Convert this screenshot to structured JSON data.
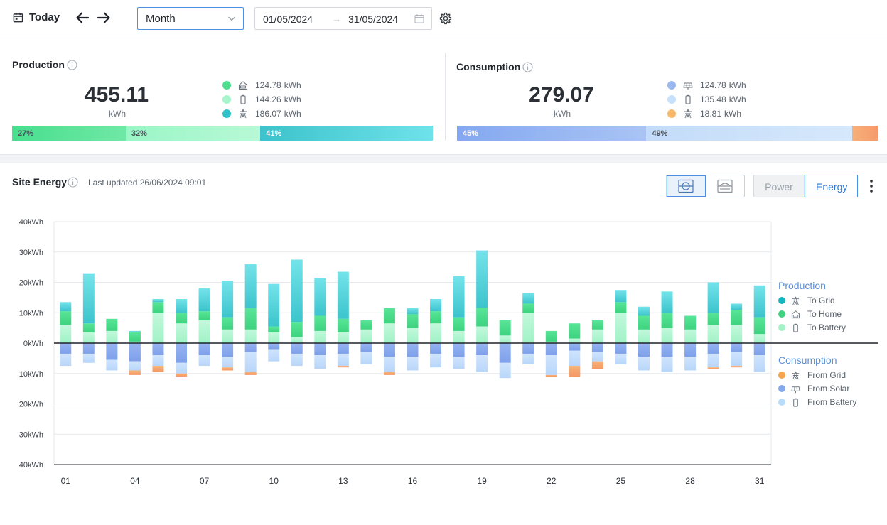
{
  "toolbar": {
    "today_label": "Today",
    "period": "Month",
    "date_from": "01/05/2024",
    "date_arrow": "→",
    "date_to": "31/05/2024"
  },
  "production": {
    "title": "Production",
    "total": "455.11",
    "unit": "kWh",
    "breakdown": [
      {
        "icon": "home-icon",
        "value": "124.78",
        "unit": "kWh",
        "color": "#4fdc8c"
      },
      {
        "icon": "battery-icon",
        "value": "144.26",
        "unit": "kWh",
        "color": "#a8f5cc"
      },
      {
        "icon": "pylon-icon",
        "value": "186.07",
        "unit": "kWh",
        "color": "#2fc2c8"
      }
    ],
    "bar": [
      {
        "label": "27%",
        "pct": 27,
        "color_from": "#48df8e",
        "color_to": "#6fe8a6"
      },
      {
        "label": "32%",
        "pct": 32,
        "color_from": "#9af6c6",
        "color_to": "#b8f8d6"
      },
      {
        "label": "41%",
        "pct": 41,
        "color_from": "#3cc3cb",
        "color_to": "#6fe2ea"
      }
    ]
  },
  "consumption": {
    "title": "Consumption",
    "total": "279.07",
    "unit": "kWh",
    "breakdown": [
      {
        "icon": "solar-panel-icon",
        "value": "124.78",
        "unit": "kWh",
        "color": "#9ab7ef"
      },
      {
        "icon": "battery-icon",
        "value": "135.48",
        "unit": "kWh",
        "color": "#c6e1fb"
      },
      {
        "icon": "pylon-icon",
        "value": "18.81",
        "unit": "kWh",
        "color": "#f8b86a"
      }
    ],
    "bar": [
      {
        "label": "45%",
        "pct": 45,
        "color_from": "#84a8f0",
        "color_to": "#a9c4f4"
      },
      {
        "label": "49%",
        "pct": 49,
        "color_from": "#c3dbfa",
        "color_to": "#d6e8fb"
      },
      {
        "label": "",
        "pct": 6,
        "color_from": "#f7b07a",
        "color_to": "#f59a6c"
      }
    ]
  },
  "site": {
    "title": "Site Energy",
    "updated": "Last updated 26/06/2024 09:01",
    "mode_power": "Power",
    "mode_energy": "Energy"
  },
  "legend": {
    "production_title": "Production",
    "production": [
      {
        "label": "To Grid",
        "color": "#13b8bf",
        "icon": "pylon-icon"
      },
      {
        "label": "To Home",
        "color": "#3ed17f",
        "icon": "home-icon"
      },
      {
        "label": "To Battery",
        "color": "#a4f3c8",
        "icon": "battery-icon"
      }
    ],
    "consumption_title": "Consumption",
    "consumption": [
      {
        "label": "From Grid",
        "color": "#f6a54a",
        "icon": "pylon-icon"
      },
      {
        "label": "From Solar",
        "color": "#86a8ec",
        "icon": "solar-panel-icon"
      },
      {
        "label": "From Battery",
        "color": "#b9dcfb",
        "icon": "battery-icon"
      }
    ]
  },
  "chart_data": {
    "type": "bar",
    "stacked": true,
    "y_tick_labels": [
      "40kWh",
      "30kWh",
      "20kWh",
      "10kWh",
      "0kWh",
      "10kWh",
      "20kWh",
      "30kWh",
      "40kWh"
    ],
    "ylim": [
      -40,
      40
    ],
    "grid": true,
    "legend_position": "right",
    "x": [
      "01",
      "02",
      "03",
      "04",
      "05",
      "06",
      "07",
      "08",
      "09",
      "10",
      "11",
      "12",
      "13",
      "14",
      "15",
      "16",
      "17",
      "18",
      "19",
      "20",
      "21",
      "22",
      "23",
      "24",
      "25",
      "26",
      "27",
      "28",
      "29",
      "30",
      "31"
    ],
    "x_tick_labels": [
      "01",
      "04",
      "07",
      "10",
      "13",
      "16",
      "19",
      "22",
      "25",
      "28",
      "31"
    ],
    "series": [
      {
        "name": "To Battery",
        "values": [
          6,
          3.5,
          4,
          0.5,
          10,
          6.5,
          7.5,
          4.5,
          4.5,
          3.5,
          2,
          4,
          3.5,
          4.5,
          6.5,
          5,
          6.5,
          4,
          5.5,
          2.5,
          10,
          0.5,
          1.5,
          4.5,
          10,
          4.5,
          5,
          4.5,
          6,
          6,
          3
        ]
      },
      {
        "name": "To Home",
        "values": [
          4.5,
          3,
          4,
          3,
          3.5,
          3.5,
          3,
          4,
          7,
          2,
          5,
          5,
          4.5,
          3,
          5,
          4.5,
          4,
          4.5,
          6,
          5,
          3,
          3.5,
          5,
          3,
          3.5,
          4.5,
          5,
          4.5,
          4,
          5,
          5.5
        ]
      },
      {
        "name": "To Grid",
        "values": [
          3,
          16.5,
          0,
          0.5,
          1,
          4.5,
          7.5,
          12,
          14.5,
          14,
          20.5,
          12.5,
          15.5,
          0,
          0,
          2,
          4,
          13.5,
          19,
          0,
          3.5,
          0,
          0,
          0,
          4,
          3,
          7,
          0,
          10,
          2,
          10.5
        ]
      },
      {
        "name": "From Solar",
        "values": [
          -3.5,
          -3.5,
          -5.5,
          -6,
          -4,
          -6.5,
          -4,
          -4.5,
          -3,
          -2,
          -3.5,
          -4,
          -3.5,
          -3,
          -4.5,
          -4.5,
          -3.5,
          -4.5,
          -4,
          -6.5,
          -3.5,
          -4,
          -2.5,
          -3,
          -3.5,
          -4.5,
          -4.5,
          -4.5,
          -3.5,
          -3,
          -4
        ]
      },
      {
        "name": "From Battery",
        "values": [
          -4,
          -3,
          -3.5,
          -3,
          -3.5,
          -3.5,
          -3.5,
          -3.5,
          -6.5,
          -4,
          -4,
          -4.5,
          -4,
          -4,
          -5,
          -4.5,
          -4.5,
          -4,
          -5.5,
          -5,
          -3.5,
          -6.5,
          -5,
          -3,
          -3.5,
          -4.5,
          -5,
          -4.5,
          -4.5,
          -4.5,
          -5.5
        ]
      },
      {
        "name": "From Grid",
        "values": [
          0,
          0,
          0,
          -1.5,
          -2,
          -1,
          0,
          -1,
          -1,
          0,
          0,
          0,
          -0.5,
          0,
          -1,
          0,
          0,
          0,
          0,
          0,
          0,
          -0.5,
          -3.5,
          -2.5,
          0,
          0,
          0,
          0,
          -0.5,
          -0.5,
          0
        ]
      }
    ]
  }
}
